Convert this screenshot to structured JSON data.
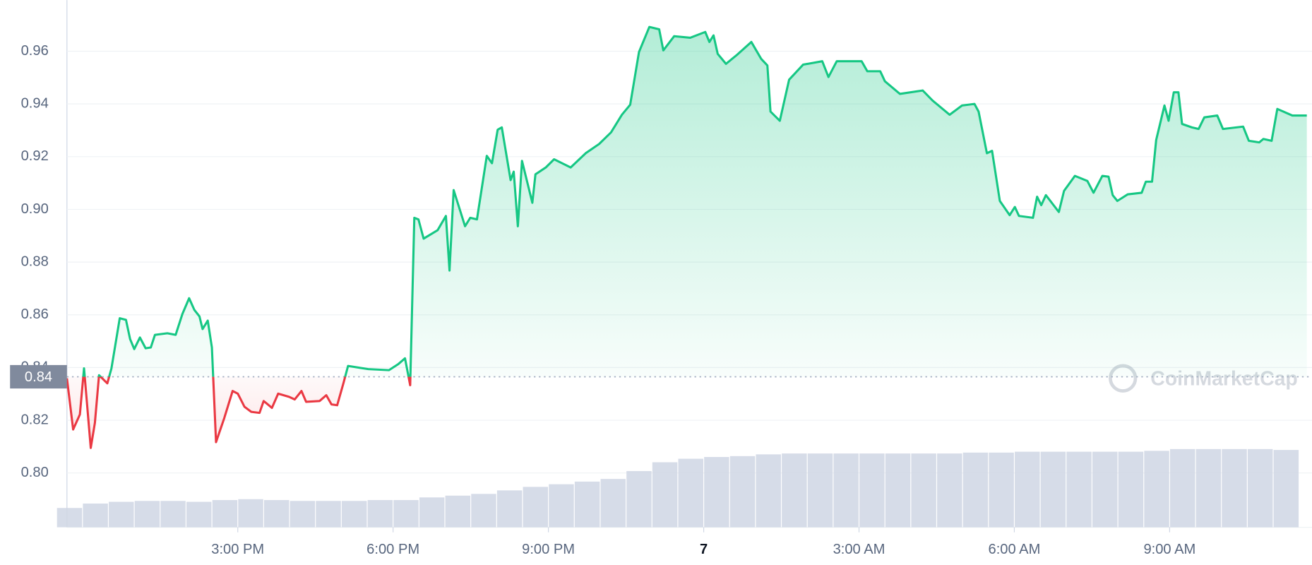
{
  "chart_data": {
    "type": "line",
    "xlim": [
      11.7,
      35.75
    ],
    "xticks": [
      {
        "value": 15,
        "label": "3:00 PM"
      },
      {
        "value": 18,
        "label": "6:00 PM"
      },
      {
        "value": 21,
        "label": "9:00 PM"
      },
      {
        "value": 24,
        "label": "7"
      },
      {
        "value": 27,
        "label": "3:00 AM"
      },
      {
        "value": 30,
        "label": "6:00 AM"
      },
      {
        "value": 33,
        "label": "9:00 AM"
      }
    ],
    "ylim": [
      0.7794,
      0.9794
    ],
    "yticks": [
      {
        "value": 0.8,
        "label": "0.80"
      },
      0.82,
      0.84,
      0.86,
      0.88,
      {
        "value": 0.9,
        "label": "0.90"
      },
      0.92,
      0.94,
      0.96
    ],
    "grid": true,
    "reference": {
      "value": 0.8365,
      "label": "0.84"
    },
    "watermark": "CoinMarketCap",
    "up_color": "#16c784",
    "down_color": "#ea3943",
    "volume_color": "#cfd6e4",
    "x": [
      11.7,
      11.82,
      11.95,
      12.03,
      12.16,
      12.24,
      12.32,
      12.48,
      12.56,
      12.72,
      12.84,
      12.92,
      13.0,
      13.11,
      13.22,
      13.32,
      13.4,
      13.64,
      13.8,
      13.93,
      14.06,
      14.16,
      14.26,
      14.32,
      14.42,
      14.5,
      14.58,
      14.74,
      14.9,
      15.0,
      15.13,
      15.26,
      15.42,
      15.5,
      15.66,
      15.78,
      15.99,
      16.1,
      16.23,
      16.32,
      16.58,
      16.71,
      16.81,
      16.92,
      17.04,
      17.13,
      17.52,
      17.92,
      18.1,
      18.23,
      18.33,
      18.41,
      18.49,
      18.59,
      18.86,
      19.02,
      19.09,
      19.17,
      19.39,
      19.49,
      19.62,
      19.81,
      19.91,
      20.02,
      20.1,
      20.27,
      20.33,
      20.41,
      20.49,
      20.69,
      20.75,
      20.95,
      21.11,
      21.43,
      21.72,
      21.98,
      22.21,
      22.42,
      22.58,
      22.75,
      22.95,
      23.14,
      23.22,
      23.43,
      23.74,
      24.03,
      24.11,
      24.19,
      24.27,
      24.43,
      24.63,
      24.92,
      25.11,
      25.23,
      25.29,
      25.47,
      25.65,
      25.92,
      26.29,
      26.41,
      26.57,
      27.05,
      27.16,
      27.41,
      27.5,
      27.79,
      28.23,
      28.42,
      28.75,
      28.99,
      29.23,
      29.31,
      29.47,
      29.57,
      29.72,
      29.91,
      30.01,
      30.09,
      30.36,
      30.44,
      30.52,
      30.61,
      30.86,
      30.96,
      31.17,
      31.41,
      31.53,
      31.7,
      31.82,
      31.9,
      31.99,
      32.19,
      32.46,
      32.54,
      32.66,
      32.74,
      32.9,
      32.98,
      33.08,
      33.17,
      33.24,
      33.43,
      33.56,
      33.67,
      33.92,
      34.03,
      34.42,
      34.53,
      34.73,
      34.81,
      34.97,
      35.08,
      35.37,
      35.65
    ],
    "series": [
      {
        "values": [
          0.8359,
          0.8165,
          0.8222,
          0.8397,
          0.8095,
          0.819,
          0.8371,
          0.834,
          0.8397,
          0.8587,
          0.8581,
          0.8508,
          0.847,
          0.8514,
          0.8473,
          0.8476,
          0.8524,
          0.853,
          0.8524,
          0.8603,
          0.8663,
          0.8619,
          0.8594,
          0.8546,
          0.8578,
          0.8476,
          0.8117,
          0.8209,
          0.8311,
          0.8301,
          0.8251,
          0.8232,
          0.8228,
          0.8273,
          0.8247,
          0.8301,
          0.8289,
          0.8279,
          0.8311,
          0.827,
          0.8273,
          0.8295,
          0.826,
          0.8257,
          0.834,
          0.8406,
          0.8394,
          0.839,
          0.8413,
          0.8435,
          0.8333,
          0.8968,
          0.8962,
          0.8889,
          0.8921,
          0.8975,
          0.8768,
          0.9073,
          0.8936,
          0.8968,
          0.8962,
          0.9203,
          0.9175,
          0.9302,
          0.9311,
          0.9111,
          0.9143,
          0.8936,
          0.9184,
          0.9025,
          0.9133,
          0.9159,
          0.919,
          0.9159,
          0.9213,
          0.9248,
          0.9292,
          0.9359,
          0.9397,
          0.9597,
          0.9692,
          0.9683,
          0.9603,
          0.9657,
          0.9651,
          0.9673,
          0.9635,
          0.966,
          0.959,
          0.9552,
          0.9584,
          0.9635,
          0.9571,
          0.9546,
          0.9371,
          0.9336,
          0.9492,
          0.9549,
          0.9562,
          0.9502,
          0.9562,
          0.9562,
          0.9524,
          0.9524,
          0.9486,
          0.9438,
          0.9451,
          0.9413,
          0.9359,
          0.9394,
          0.94,
          0.9371,
          0.9213,
          0.9222,
          0.9032,
          0.8978,
          0.9009,
          0.8975,
          0.8968,
          0.9048,
          0.9016,
          0.9054,
          0.899,
          0.907,
          0.9127,
          0.9108,
          0.9063,
          0.9127,
          0.9124,
          0.9054,
          0.9032,
          0.9057,
          0.9063,
          0.9105,
          0.9105,
          0.9263,
          0.9394,
          0.9336,
          0.9444,
          0.9444,
          0.9324,
          0.9311,
          0.9305,
          0.9349,
          0.9356,
          0.9305,
          0.9314,
          0.926,
          0.9254,
          0.9267,
          0.926,
          0.9381,
          0.9356,
          0.9356
        ]
      }
    ],
    "volume": {
      "y2lim": [
        0,
        100
      ],
      "x": [
        11.75,
        12.25,
        12.75,
        13.25,
        13.75,
        14.25,
        14.75,
        15.25,
        15.75,
        16.25,
        16.75,
        17.25,
        17.75,
        18.25,
        18.75,
        19.25,
        19.75,
        20.25,
        20.75,
        21.25,
        21.75,
        22.25,
        22.75,
        23.25,
        23.75,
        24.25,
        24.75,
        25.25,
        25.75,
        26.25,
        26.75,
        27.25,
        27.75,
        28.25,
        28.75,
        29.25,
        29.75,
        30.25,
        30.75,
        31.25,
        31.75,
        32.25,
        32.75,
        33.25,
        33.75,
        34.25,
        34.75,
        35.25
      ],
      "values": [
        22,
        27,
        29,
        30,
        30,
        29,
        31,
        32,
        31,
        30,
        30,
        30,
        31,
        31,
        34,
        36,
        38,
        42,
        46,
        49,
        52,
        55,
        64,
        74,
        78,
        80,
        81,
        83,
        84,
        84,
        84,
        84,
        84,
        84,
        84,
        85,
        85,
        86,
        86,
        86,
        86,
        86,
        87,
        89,
        89,
        89,
        89,
        88
      ]
    }
  }
}
